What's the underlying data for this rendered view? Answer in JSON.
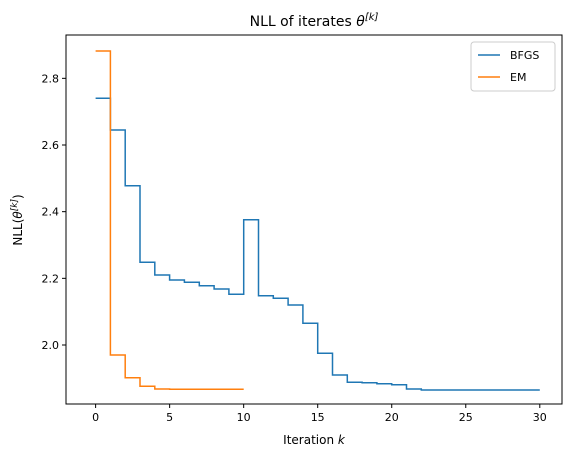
{
  "chart_data": {
    "type": "line",
    "step": "post",
    "title_main": "NLL of iterates ",
    "title_sym": "θ",
    "title_sup": "[k]",
    "xlabel_main": "Iteration ",
    "xlabel_sym": "k",
    "ylabel_main": "NLL(",
    "ylabel_sym": "θ",
    "ylabel_sup": "[k]",
    "ylabel_close": ")",
    "xlim": [
      -2.0,
      31.5
    ],
    "ylim": [
      1.823,
      2.93
    ],
    "xticks": [
      0,
      5,
      10,
      15,
      20,
      25,
      30
    ],
    "yticks": [
      2.0,
      2.2,
      2.4,
      2.6,
      2.8
    ],
    "ytick_labels": [
      "2.0",
      "2.2",
      "2.4",
      "2.6",
      "2.8"
    ],
    "legend_position": "top-right",
    "series": [
      {
        "name": "BFGS",
        "color": "#1f77b4",
        "x": [
          0,
          1,
          2,
          3,
          4,
          5,
          6,
          7,
          8,
          9,
          10,
          11,
          12,
          13,
          14,
          15,
          16,
          17,
          18,
          19,
          20,
          21,
          22,
          23,
          24,
          25,
          26,
          27,
          28,
          29,
          30
        ],
        "y": [
          2.74,
          2.645,
          2.478,
          2.248,
          2.21,
          2.195,
          2.188,
          2.178,
          2.168,
          2.152,
          2.376,
          2.148,
          2.14,
          2.12,
          2.065,
          1.975,
          1.91,
          1.888,
          1.887,
          1.884,
          1.881,
          1.868,
          1.865,
          1.865,
          1.865,
          1.865,
          1.865,
          1.865,
          1.865,
          1.865,
          1.865
        ]
      },
      {
        "name": "EM",
        "color": "#ff7f0e",
        "x": [
          0,
          1,
          2,
          3,
          4,
          5,
          6,
          7,
          8,
          9,
          10
        ],
        "y": [
          2.882,
          1.97,
          1.902,
          1.876,
          1.868,
          1.867,
          1.867,
          1.867,
          1.867,
          1.867,
          1.867
        ]
      }
    ]
  }
}
